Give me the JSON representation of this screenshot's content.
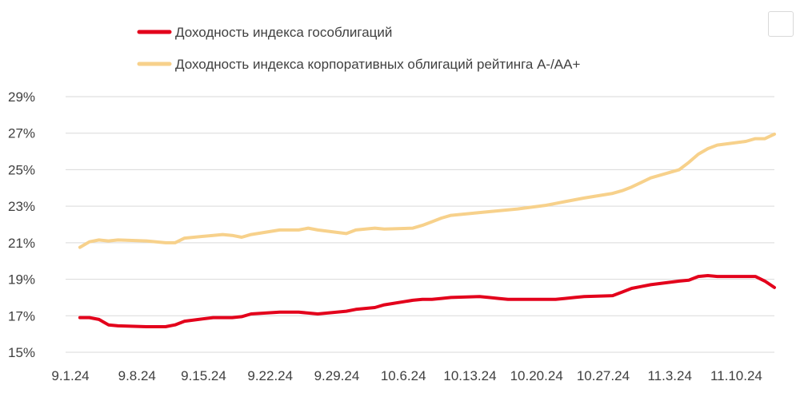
{
  "chart_data": {
    "type": "line",
    "title": "",
    "xlabel": "",
    "ylabel": "",
    "ylim": [
      15,
      29
    ],
    "y_ticks": [
      "15%",
      "17%",
      "19%",
      "21%",
      "23%",
      "25%",
      "27%",
      "29%"
    ],
    "y_tick_values": [
      15,
      17,
      19,
      21,
      23,
      25,
      27,
      29
    ],
    "x_ticks": [
      "9.1.24",
      "9.8.24",
      "9.15.24",
      "9.22.24",
      "9.29.24",
      "10.6.24",
      "10.13.24",
      "10.20.24",
      "10.27.24",
      "11.3.24",
      "11.10.24"
    ],
    "x_range": [
      "2024-09-01",
      "2024-11-14"
    ],
    "grid": "horizontal",
    "legend_position": "top-left",
    "series": [
      {
        "name": "Доходность индекса гособлигаций",
        "color": "#e3001b",
        "points": [
          [
            "2024-09-02",
            16.9
          ],
          [
            "2024-09-03",
            16.9
          ],
          [
            "2024-09-04",
            16.8
          ],
          [
            "2024-09-05",
            16.5
          ],
          [
            "2024-09-06",
            16.45
          ],
          [
            "2024-09-09",
            16.4
          ],
          [
            "2024-09-10",
            16.4
          ],
          [
            "2024-09-11",
            16.4
          ],
          [
            "2024-09-12",
            16.5
          ],
          [
            "2024-09-13",
            16.7
          ],
          [
            "2024-09-16",
            16.9
          ],
          [
            "2024-09-17",
            16.9
          ],
          [
            "2024-09-18",
            16.9
          ],
          [
            "2024-09-19",
            16.95
          ],
          [
            "2024-09-20",
            17.1
          ],
          [
            "2024-09-23",
            17.2
          ],
          [
            "2024-09-24",
            17.2
          ],
          [
            "2024-09-25",
            17.2
          ],
          [
            "2024-09-26",
            17.15
          ],
          [
            "2024-09-27",
            17.1
          ],
          [
            "2024-09-30",
            17.25
          ],
          [
            "2024-10-01",
            17.35
          ],
          [
            "2024-10-02",
            17.4
          ],
          [
            "2024-10-03",
            17.45
          ],
          [
            "2024-10-04",
            17.6
          ],
          [
            "2024-10-07",
            17.85
          ],
          [
            "2024-10-08",
            17.9
          ],
          [
            "2024-10-09",
            17.9
          ],
          [
            "2024-10-10",
            17.95
          ],
          [
            "2024-10-11",
            18.0
          ],
          [
            "2024-10-14",
            18.05
          ],
          [
            "2024-10-15",
            18.0
          ],
          [
            "2024-10-16",
            17.95
          ],
          [
            "2024-10-17",
            17.9
          ],
          [
            "2024-10-18",
            17.9
          ],
          [
            "2024-10-21",
            17.9
          ],
          [
            "2024-10-22",
            17.9
          ],
          [
            "2024-10-23",
            17.95
          ],
          [
            "2024-10-24",
            18.0
          ],
          [
            "2024-10-25",
            18.05
          ],
          [
            "2024-10-28",
            18.1
          ],
          [
            "2024-10-29",
            18.3
          ],
          [
            "2024-10-30",
            18.5
          ],
          [
            "2024-10-31",
            18.6
          ],
          [
            "2024-11-01",
            18.7
          ],
          [
            "2024-11-04",
            18.9
          ],
          [
            "2024-11-05",
            18.95
          ],
          [
            "2024-11-06",
            19.15
          ],
          [
            "2024-11-07",
            19.2
          ],
          [
            "2024-11-08",
            19.15
          ],
          [
            "2024-11-11",
            19.15
          ],
          [
            "2024-11-12",
            19.15
          ],
          [
            "2024-11-13",
            18.9
          ],
          [
            "2024-11-14",
            18.55
          ]
        ]
      },
      {
        "name": "Доходность индекса корпоративных облигаций рейтинга А-/АА+",
        "color": "#f7d18b",
        "points": [
          [
            "2024-09-02",
            20.75
          ],
          [
            "2024-09-03",
            21.05
          ],
          [
            "2024-09-04",
            21.15
          ],
          [
            "2024-09-05",
            21.1
          ],
          [
            "2024-09-06",
            21.15
          ],
          [
            "2024-09-09",
            21.1
          ],
          [
            "2024-09-10",
            21.05
          ],
          [
            "2024-09-11",
            21.0
          ],
          [
            "2024-09-12",
            21.0
          ],
          [
            "2024-09-13",
            21.25
          ],
          [
            "2024-09-16",
            21.4
          ],
          [
            "2024-09-17",
            21.45
          ],
          [
            "2024-09-18",
            21.4
          ],
          [
            "2024-09-19",
            21.3
          ],
          [
            "2024-09-20",
            21.45
          ],
          [
            "2024-09-23",
            21.7
          ],
          [
            "2024-09-24",
            21.7
          ],
          [
            "2024-09-25",
            21.7
          ],
          [
            "2024-09-26",
            21.8
          ],
          [
            "2024-09-27",
            21.7
          ],
          [
            "2024-09-30",
            21.5
          ],
          [
            "2024-10-01",
            21.7
          ],
          [
            "2024-10-02",
            21.75
          ],
          [
            "2024-10-03",
            21.8
          ],
          [
            "2024-10-04",
            21.75
          ],
          [
            "2024-10-07",
            21.8
          ],
          [
            "2024-10-08",
            21.95
          ],
          [
            "2024-10-09",
            22.15
          ],
          [
            "2024-10-10",
            22.35
          ],
          [
            "2024-10-11",
            22.5
          ],
          [
            "2024-10-14",
            22.65
          ],
          [
            "2024-10-15",
            22.7
          ],
          [
            "2024-10-16",
            22.75
          ],
          [
            "2024-10-17",
            22.8
          ],
          [
            "2024-10-18",
            22.85
          ],
          [
            "2024-10-21",
            23.05
          ],
          [
            "2024-10-22",
            23.15
          ],
          [
            "2024-10-23",
            23.25
          ],
          [
            "2024-10-24",
            23.35
          ],
          [
            "2024-10-25",
            23.45
          ],
          [
            "2024-10-28",
            23.7
          ],
          [
            "2024-10-29",
            23.85
          ],
          [
            "2024-10-30",
            24.05
          ],
          [
            "2024-10-31",
            24.3
          ],
          [
            "2024-11-01",
            24.55
          ],
          [
            "2024-11-04",
            25.0
          ],
          [
            "2024-11-05",
            25.4
          ],
          [
            "2024-11-06",
            25.85
          ],
          [
            "2024-11-07",
            26.15
          ],
          [
            "2024-11-08",
            26.35
          ],
          [
            "2024-11-11",
            26.55
          ],
          [
            "2024-11-12",
            26.7
          ],
          [
            "2024-11-13",
            26.7
          ],
          [
            "2024-11-14",
            26.95
          ]
        ]
      }
    ]
  }
}
